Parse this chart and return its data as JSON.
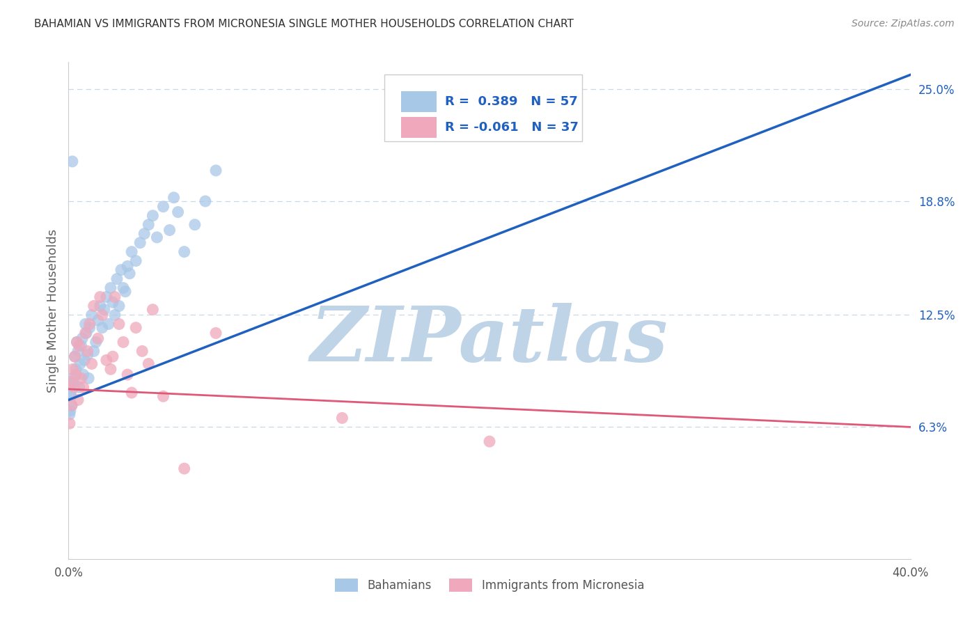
{
  "title": "BAHAMIAN VS IMMIGRANTS FROM MICRONESIA SINGLE MOTHER HOUSEHOLDS CORRELATION CHART",
  "source": "Source: ZipAtlas.com",
  "ylabel": "Single Mother Households",
  "watermark": "ZIPatlas",
  "legend_r1": "R =  0.389",
  "legend_n1": "N = 57",
  "legend_r2": "R = -0.061",
  "legend_n2": "N = 37",
  "xlim": [
    0.0,
    40.0
  ],
  "ylim": [
    -1.0,
    26.5
  ],
  "yticks_right": [
    6.3,
    12.5,
    18.8,
    25.0
  ],
  "ytick_labels_right": [
    "6.3%",
    "12.5%",
    "18.8%",
    "25.0%"
  ],
  "blue_color": "#a8c8e8",
  "pink_color": "#f0a8bc",
  "blue_line_color": "#2060c0",
  "pink_line_color": "#e05878",
  "title_color": "#303030",
  "watermark_color": "#c0d4e8",
  "legend_text_color": "#2060c0",
  "axis_label_color": "#606060",
  "grid_color": "#c8d8e8",
  "blue_line_x0": 0.0,
  "blue_line_y0": 7.8,
  "blue_line_x1": 40.0,
  "blue_line_y1": 25.8,
  "pink_line_x0": 0.0,
  "pink_line_y0": 8.4,
  "pink_line_x1": 40.0,
  "pink_line_y1": 6.3
}
